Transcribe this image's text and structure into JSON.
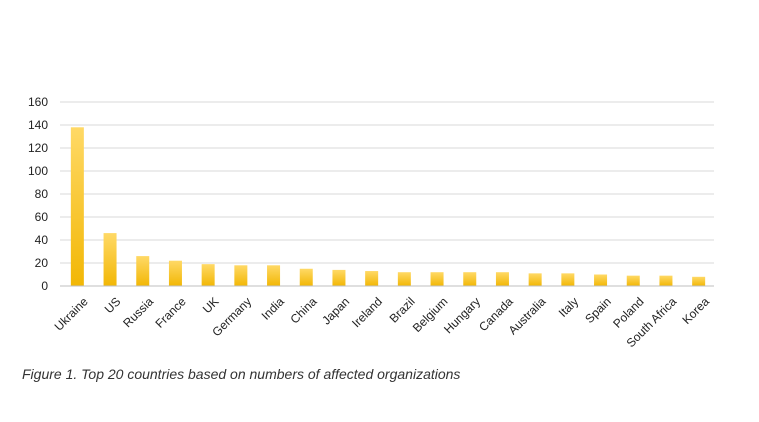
{
  "caption": "Figure 1. Top 20 countries based on numbers of affected organizations",
  "colors": {
    "bar_top": "#FFD966",
    "bar_bottom": "#F2B705",
    "grid": "#d9d9d9",
    "axis": "#bfbfbf"
  },
  "chart_data": {
    "type": "bar",
    "categories": [
      "Ukraine",
      "US",
      "Russia",
      "France",
      "UK",
      "Germany",
      "India",
      "China",
      "Japan",
      "Ireland",
      "Brazil",
      "Belgium",
      "Hungary",
      "Canada",
      "Australia",
      "Italy",
      "Spain",
      "Poland",
      "South Africa",
      "Korea"
    ],
    "values": [
      138,
      46,
      26,
      22,
      19,
      18,
      18,
      15,
      14,
      13,
      12,
      12,
      12,
      12,
      11,
      11,
      10,
      9,
      9,
      8
    ],
    "yticks": [
      0,
      20,
      40,
      60,
      80,
      100,
      120,
      140,
      160
    ],
    "ylim": [
      0,
      160
    ],
    "grid": true,
    "title": "",
    "xlabel": "",
    "ylabel": ""
  }
}
